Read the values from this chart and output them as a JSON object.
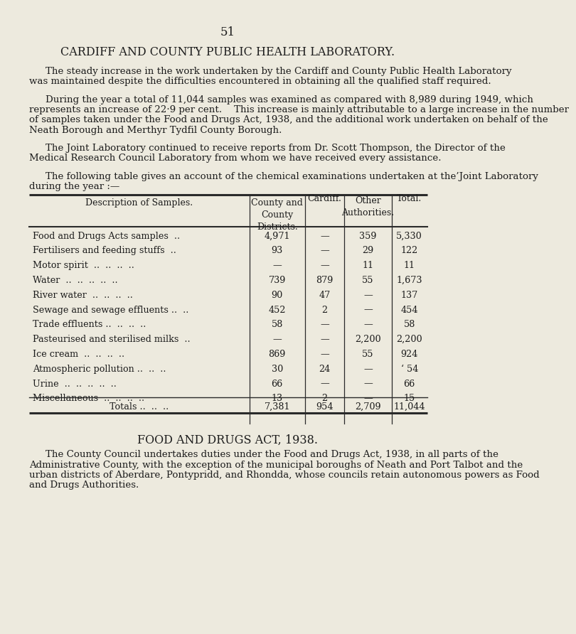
{
  "bg_color": "#edeade",
  "page_number": "51",
  "title": "CARDIFF AND COUNTY PUBLIC HEALTH LABORATORY.",
  "para1_lines": [
    "The steady increase in the work undertaken by the Cardiff and County Public Health Laboratory",
    "was maintained despite the difficulties encountered in obtaining all the qualified staff required."
  ],
  "para2_lines": [
    "During the year a total of 11,044 samples was examined as compared with 8,989 during 1949, which",
    "represents an increase of 22·9 per cent.    This increase is mainly attributable to a large increase in the number",
    "of samples taken under the Food and Drugs Act, 1938, and the additional work undertaken on behalf of the",
    "Neath Borough and Merthyr Tydfil County Borough."
  ],
  "para3_lines": [
    "The Joint Laboratory continued to receive reports from Dr. Scott Thompson, the Director of the",
    "Medical Research Council Laboratory from whom we have received every assistance."
  ],
  "para4_lines": [
    "The following table gives an account of the chemical examinations undertaken at the’Joint Laboratory",
    "during the year :—"
  ],
  "table_col_headers": [
    "Description of Samples.",
    "County and\nCounty\nDistricts.",
    "Cardiff.",
    "Other\nAuthorities.",
    "Total."
  ],
  "table_rows": [
    [
      "Food and Drugs Acts samples",
      "..",
      "4,971",
      "—",
      "359",
      "5,330"
    ],
    [
      "Fertilisers and feeding stuffs",
      "..",
      "93",
      "—",
      "29",
      "122"
    ],
    [
      "Motor spirit  ..",
      "  ..  ..  ..",
      "—",
      "—",
      "11",
      "11"
    ],
    [
      "Water ..",
      "  ..  ..  ..  ..",
      "739",
      "879",
      "55",
      "1,673"
    ],
    [
      "River water",
      "  ..  ..  ..  ..",
      "90",
      "47",
      "—",
      "137"
    ],
    [
      "Sewage and sewage effluents ..",
      "  ..",
      "452",
      "2",
      "—",
      "454"
    ],
    [
      "Trade effluents ..",
      "  ..  ..  ..",
      "58",
      "—",
      "—",
      "58"
    ],
    [
      "Pasteurised and sterilised milks",
      "  ..",
      "—",
      "—",
      "2,200",
      "2,200"
    ],
    [
      "Ice cream",
      "  ..  ..  ..  ..",
      "869",
      "—",
      "55",
      "924"
    ],
    [
      "Atmospheric pollution ..",
      "  ..  ..",
      "30",
      "24",
      "—",
      "54"
    ],
    [
      "Urine",
      "  ..  ..  ..  ..  ..",
      "66",
      "—",
      "—",
      "66"
    ],
    [
      "Miscellaneous ..",
      "  ..  ..  ..",
      "13",
      "2",
      "—",
      "15"
    ]
  ],
  "table_row_labels": [
    "Food and Drugs Acts samples  ..",
    "Fertilisers and feeding stuffs  ..",
    "Motor spirit  ..  ..  ..  ..",
    "Water  ..  ..  ..  ..  ..",
    "River water  ..  ..  ..  ..",
    "Sewage and sewage effluents ..  ..",
    "Trade effluents ..  ..  ..  ..",
    "Pasteurised and sterilised milks  ..",
    "Ice cream  ..  ..  ..  ..",
    "Atmospheric pollution ..  ..  ..",
    "Urine  ..  ..  ..  ..  ..",
    "Miscellaneous  ..  ..  ..  .."
  ],
  "table_data": [
    [
      "4,971",
      "—",
      "359",
      "5,330"
    ],
    [
      "93",
      "—",
      "29",
      "122"
    ],
    [
      "—",
      "—",
      "11",
      "11"
    ],
    [
      "739",
      "879",
      "55",
      "1,673"
    ],
    [
      "90",
      "47",
      "—",
      "137"
    ],
    [
      "452",
      "2",
      "—",
      "454"
    ],
    [
      "58",
      "—",
      "—",
      "58"
    ],
    [
      "—",
      "—",
      "2,200",
      "2,200"
    ],
    [
      "869",
      "—",
      "55",
      "924"
    ],
    [
      "30",
      "24",
      "—",
      "54"
    ],
    [
      "66",
      "—",
      "—",
      "66"
    ],
    [
      "13",
      "2",
      "—",
      "15"
    ]
  ],
  "totals_label": "Totals ..  ..  ..",
  "totals_data": [
    "7,381",
    "954",
    "2,709",
    "11,044"
  ],
  "atm_pollution_note": "‘ 54",
  "section2_title": "FOOD AND DRUGS ACT, 1938.",
  "section2_lines": [
    "The County Council undertakes duties under the Food and Drugs Act, 1938, in all parts of the",
    "Administrative County, with the exception of the municipal boroughs of Neath and Port Talbot and the",
    "urban districts of Aberdare, Pontypridd, and Rhondda, whose councils retain autonomous powers as Food",
    "and Drugs Authorities."
  ],
  "text_color": "#1c1c1c",
  "line_color": "#2a2a2a",
  "font_body": 9.6,
  "font_title": 11.5,
  "font_page": 12,
  "font_table": 9.2,
  "font_table_header": 9.0
}
